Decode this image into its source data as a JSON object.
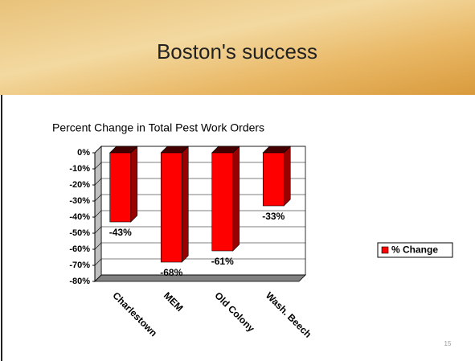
{
  "slide_title": "Boston's success",
  "page_number": "15",
  "chart_data": {
    "type": "bar3d",
    "title": "Percent Change in Total Pest Work Orders",
    "categories": [
      "Charlestown",
      "MEM",
      "Old Colony",
      "Wash. Beech"
    ],
    "series": [
      {
        "name": "% Change",
        "color": "#ff0000",
        "values": [
          -43,
          -68,
          -61,
          -33
        ],
        "value_labels": [
          "-43%",
          "-68%",
          "-61%",
          "-33%"
        ]
      }
    ],
    "ylim": [
      -80,
      0
    ],
    "yticks": [
      {
        "value": 0,
        "label": "0%"
      },
      {
        "value": -10,
        "label": "-10%"
      },
      {
        "value": -20,
        "label": "-20%"
      },
      {
        "value": -30,
        "label": "-30%"
      },
      {
        "value": -40,
        "label": "-40%"
      },
      {
        "value": -50,
        "label": "-50%"
      },
      {
        "value": -60,
        "label": "-60%"
      },
      {
        "value": -70,
        "label": "-70%"
      },
      {
        "value": -80,
        "label": "-80%"
      }
    ],
    "grid": true,
    "legend": "right"
  }
}
